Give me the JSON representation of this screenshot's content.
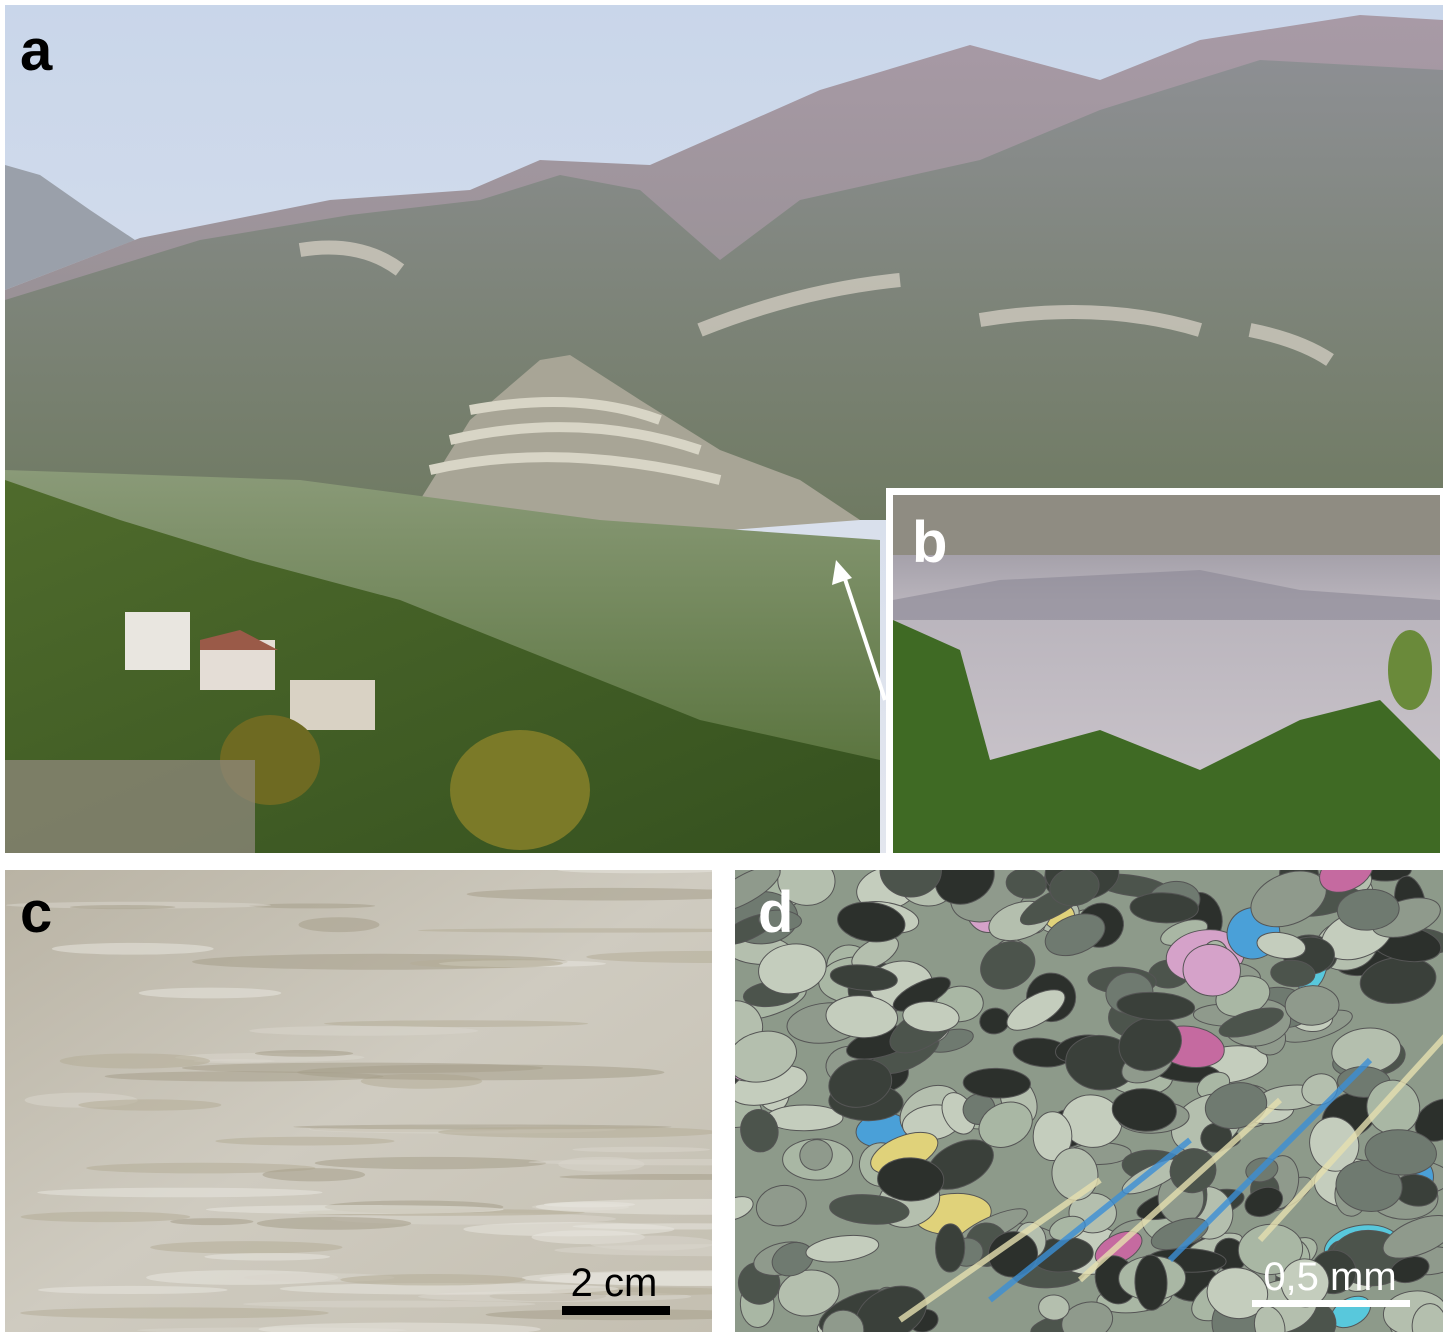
{
  "panels": [
    {
      "label": "a"
    },
    {
      "label": "b"
    },
    {
      "label": "c",
      "scale_bar": "2 cm"
    },
    {
      "label": "d",
      "scale_bar": "0,5 mm"
    }
  ]
}
